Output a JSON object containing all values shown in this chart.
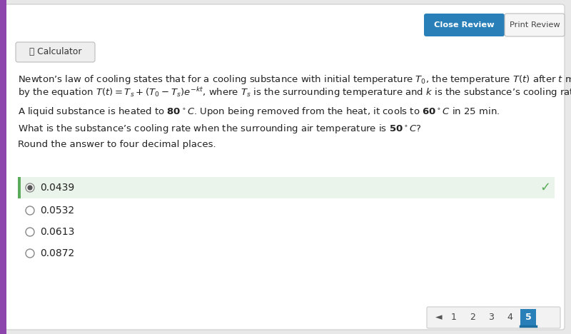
{
  "bg_color": "#e8e8e8",
  "card_color": "#ffffff",
  "button_close_color": "#2980b9",
  "button_close_text": "Close Review",
  "button_print_text": "Print Review",
  "button_print_color": "#f5f5f5",
  "calc_label": "⎗ Calculator",
  "calc_box_color": "#eeeeee",
  "p1_line1": "Newton’s law of cooling states that for a cooling substance with initial temperature $T_0$, the temperature $T(t)$ after $t$ minutes  can be modeled",
  "p1_line2": "by the equation $T(t) = T_s + (T_0 - T_s)e^{-kt}$, where $T_s$ is the surrounding temperature and $k$ is the substance’s cooling rate.",
  "p2": "A liquid substance is heated to $\\mathbf{80}^\\circ C$. Upon being removed from the heat, it cools to $\\mathbf{60}^\\circ C$ in 25 min.",
  "p3": "What is the substance’s cooling rate when the surrounding air temperature is $\\mathbf{50}^\\circ C$?",
  "p4": "Round the answer to four decimal places.",
  "answer_correct": "0.0439",
  "answer_correct_bg": "#eaf4ea",
  "answer_correct_bar_color": "#5aac5a",
  "checkmark_color": "#5aac5a",
  "answers_other": [
    "0.0532",
    "0.0613",
    "0.0872"
  ],
  "nav_pages": [
    "1",
    "2",
    "3",
    "4",
    "5"
  ],
  "nav_current": "5",
  "nav_current_color": "#2980b9",
  "left_bar_color": "#8e44ad",
  "text_color": "#222222",
  "text_fontsize": 9.5
}
